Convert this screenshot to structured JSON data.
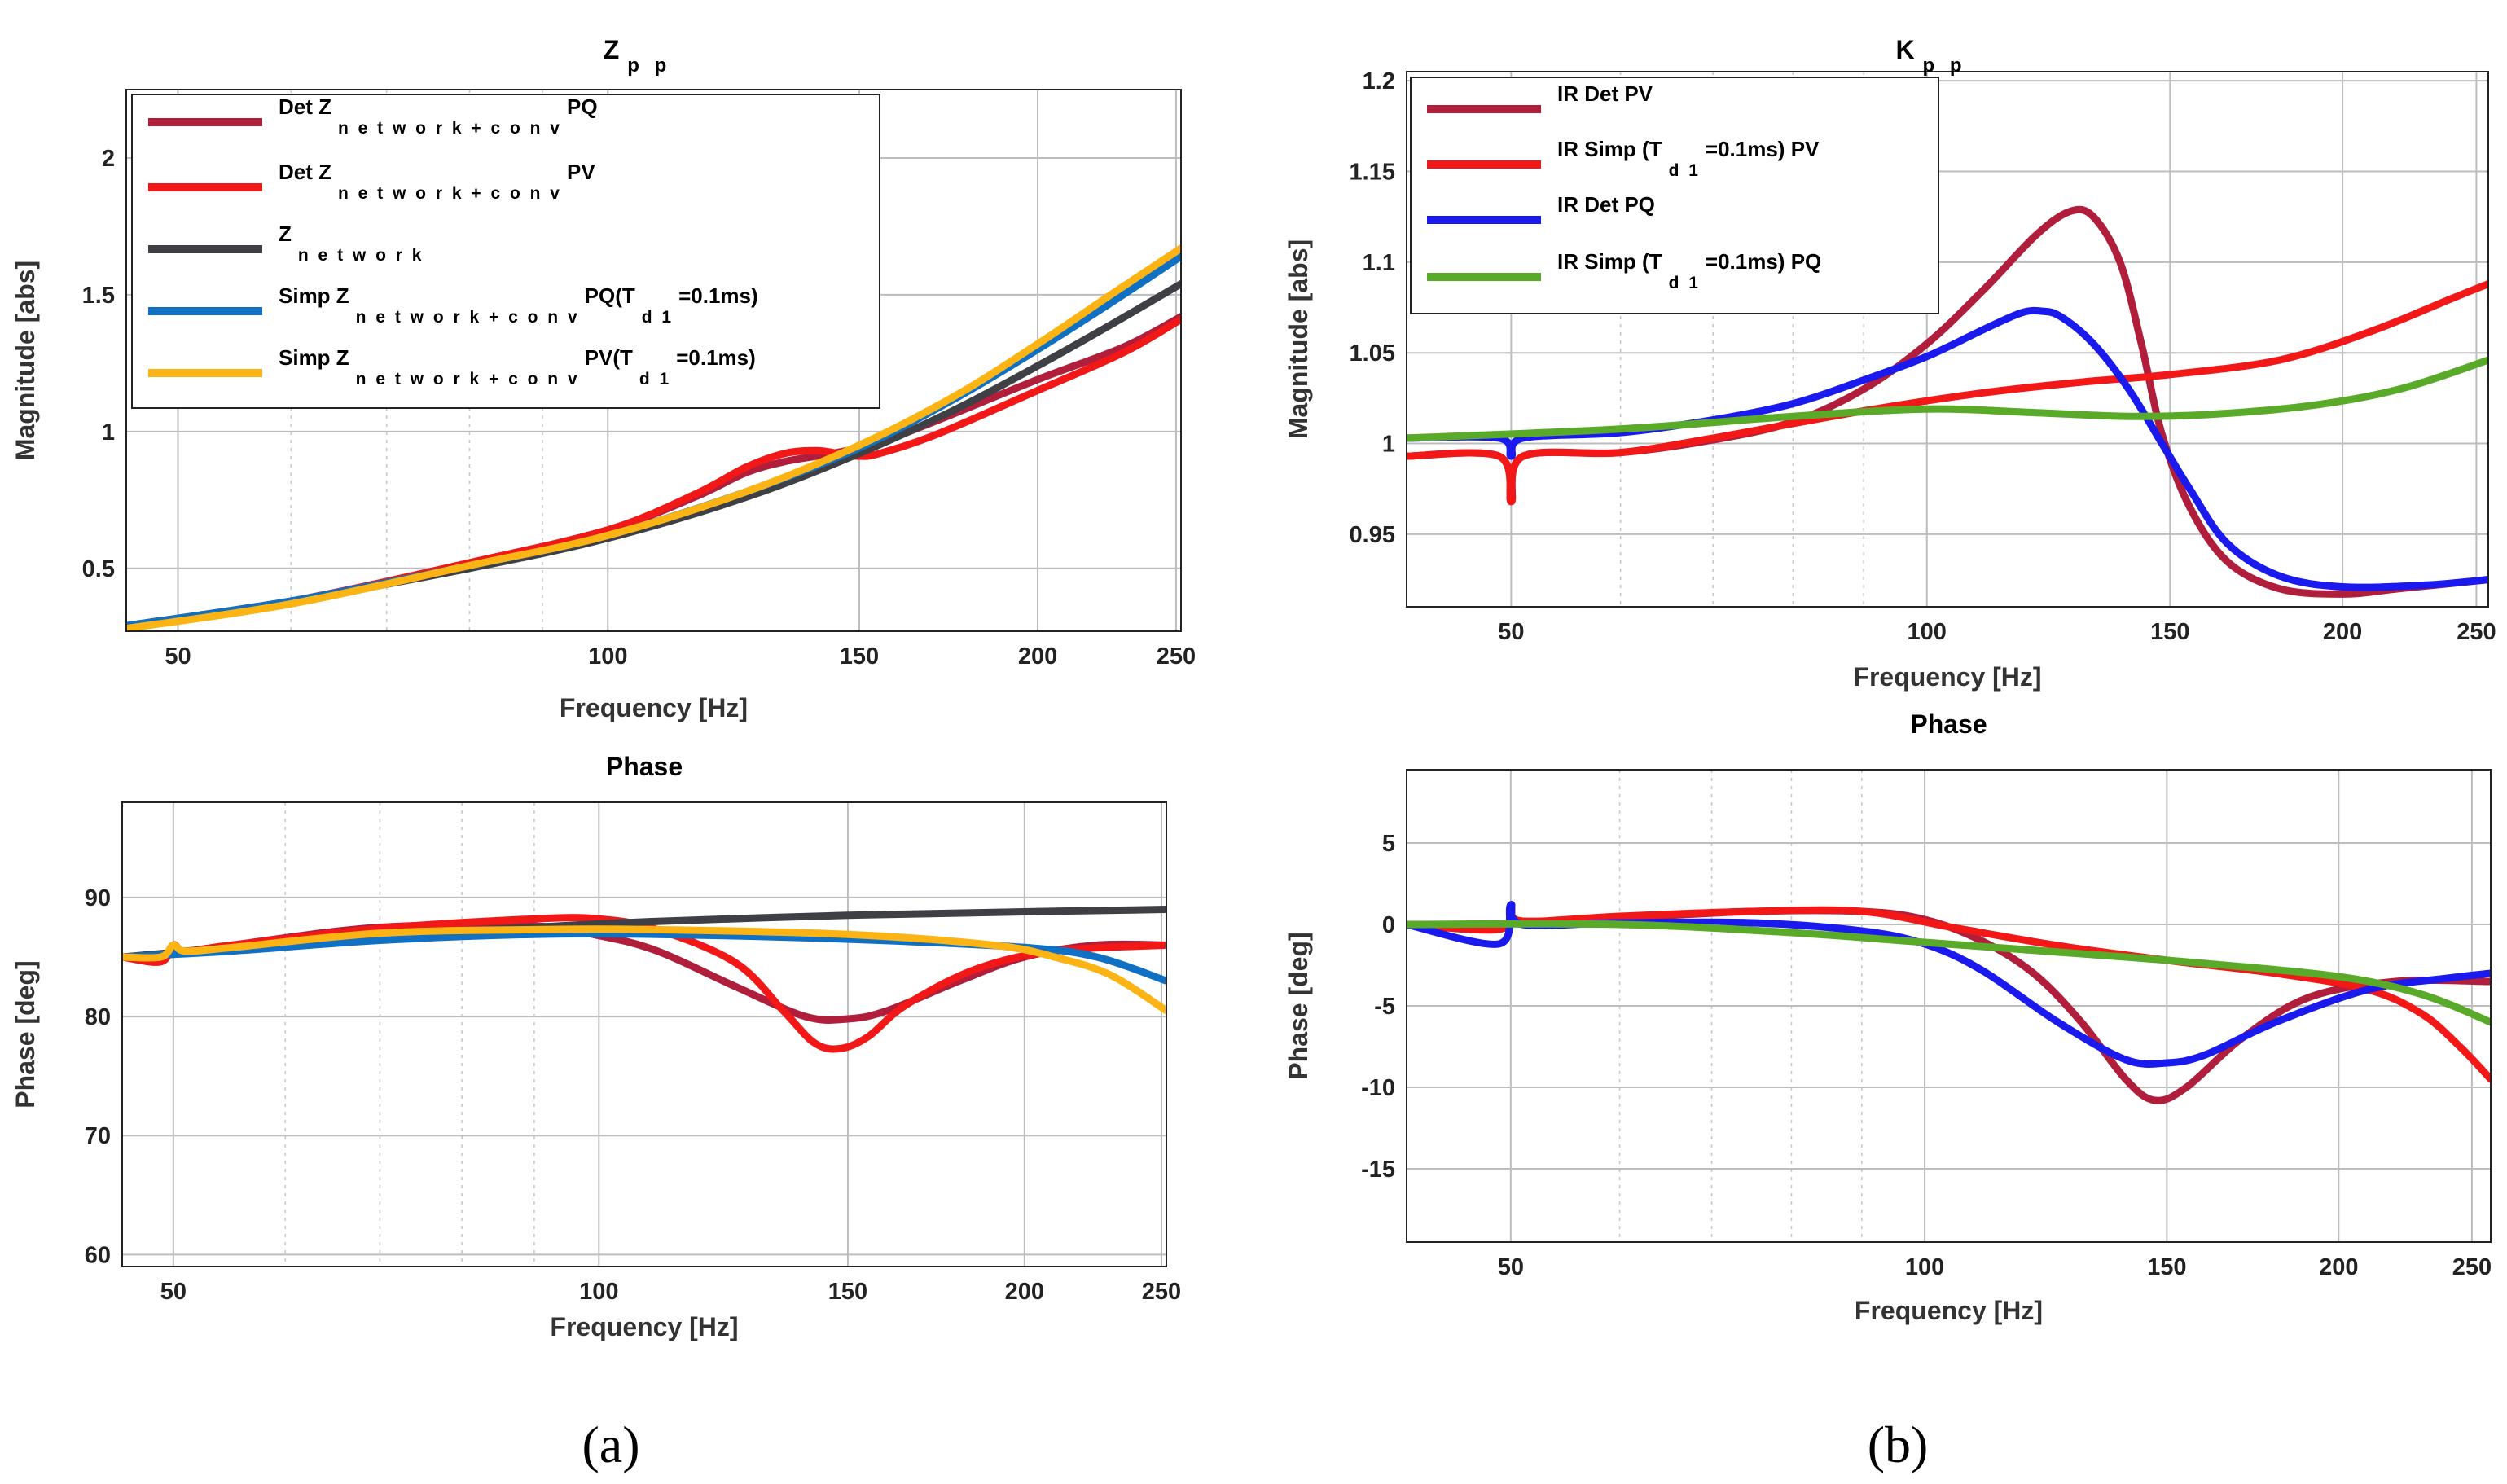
{
  "colors": {
    "darkred": "#b01e3c",
    "red": "#f21818",
    "gray": "#3f4045",
    "blue": "#1070c4",
    "yellow": "#fbb413",
    "brightblue": "#1a1aee",
    "green": "#5aaa2a"
  },
  "panels": [
    {
      "label": "(a)"
    },
    {
      "label": "(b)"
    }
  ],
  "chart_data": [
    {
      "id": "a_mag",
      "type": "line",
      "title": "Z",
      "title_sub": "p p",
      "xlabel": "Frequency [Hz]",
      "ylabel": "Magnitude [abs]",
      "xscale": "log",
      "xlim": [
        46,
        252
      ],
      "ylim": [
        0.27,
        2.25
      ],
      "xticks": [
        50,
        100,
        150,
        200,
        250
      ],
      "yticks": [
        0.5,
        1,
        1.5,
        2
      ],
      "grid": true,
      "legend_position": "top-left",
      "series": [
        {
          "name": "Det Z",
          "name_sub": "n e t w o r k + c o n v",
          "name_tail": "PQ",
          "color": "#b01e3c",
          "x": [
            46,
            60,
            80,
            100,
            115,
            125,
            133,
            140,
            147,
            155,
            170,
            200,
            230,
            252
          ],
          "y": [
            0.29,
            0.38,
            0.52,
            0.64,
            0.76,
            0.85,
            0.89,
            0.91,
            0.93,
            0.96,
            1.04,
            1.19,
            1.31,
            1.42
          ]
        },
        {
          "name": "Det Z",
          "name_sub": "n e t w o r k + c o n v",
          "name_tail": "PV",
          "color": "#f21818",
          "x": [
            46,
            60,
            80,
            100,
            115,
            125,
            133,
            140,
            145,
            150,
            155,
            170,
            200,
            230,
            252
          ],
          "y": [
            0.29,
            0.38,
            0.52,
            0.64,
            0.77,
            0.87,
            0.92,
            0.93,
            0.92,
            0.91,
            0.92,
            0.99,
            1.15,
            1.29,
            1.41
          ]
        },
        {
          "name": "Z",
          "name_sub": "n e t w o r k",
          "name_tail": "",
          "color": "#3f4045",
          "x": [
            46,
            60,
            80,
            100,
            125,
            150,
            175,
            200,
            225,
            252
          ],
          "y": [
            0.29,
            0.38,
            0.5,
            0.61,
            0.76,
            0.92,
            1.08,
            1.24,
            1.39,
            1.54
          ]
        },
        {
          "name": "Simp Z",
          "name_sub": "n e t w o r k + c o n v",
          "name_tail": "PQ(T",
          "name_sub2": "d 1",
          "name_tail2": "=0.1ms)",
          "color": "#1070c4",
          "x": [
            46,
            60,
            80,
            100,
            125,
            150,
            175,
            200,
            225,
            252
          ],
          "y": [
            0.29,
            0.38,
            0.51,
            0.62,
            0.78,
            0.94,
            1.12,
            1.3,
            1.47,
            1.64
          ]
        },
        {
          "name": "Simp Z",
          "name_sub": "n e t w o r k + c o n v",
          "name_tail": "PV(T",
          "name_sub2": "d 1",
          "name_tail2": "=0.1ms)",
          "color": "#fbb413",
          "x": [
            46,
            60,
            80,
            100,
            125,
            150,
            175,
            200,
            225,
            252
          ],
          "y": [
            0.28,
            0.37,
            0.51,
            0.62,
            0.78,
            0.95,
            1.13,
            1.32,
            1.5,
            1.67
          ]
        }
      ]
    },
    {
      "id": "a_phase",
      "type": "line",
      "title": "Phase",
      "xlabel": "Frequency [Hz]",
      "ylabel": "Phase [deg]",
      "xscale": "log",
      "xlim": [
        46,
        252
      ],
      "ylim": [
        59,
        98
      ],
      "xticks": [
        50,
        100,
        150,
        200,
        250
      ],
      "yticks": [
        60,
        70,
        80,
        90
      ],
      "grid": true,
      "series": [
        {
          "name": "Det Z network+conv PQ",
          "color": "#b01e3c",
          "x": [
            46,
            49,
            50,
            51,
            55,
            70,
            90,
            100,
            110,
            125,
            140,
            150,
            160,
            180,
            200,
            225,
            252
          ],
          "y": [
            85,
            84.6,
            86,
            85.5,
            86,
            87.5,
            87.6,
            86.8,
            85.5,
            82.5,
            80,
            79.8,
            80.5,
            83,
            85,
            86,
            86
          ]
        },
        {
          "name": "Det Z network+conv PV",
          "color": "#f21818",
          "x": [
            46,
            49,
            50,
            51,
            55,
            70,
            90,
            100,
            110,
            125,
            135,
            142,
            148,
            155,
            165,
            185,
            210,
            252
          ],
          "y": [
            85,
            84.6,
            86,
            85.5,
            86,
            87.4,
            88.2,
            88.2,
            87.3,
            84.5,
            80.5,
            77.8,
            77.3,
            78.3,
            81,
            84,
            85.5,
            86
          ]
        },
        {
          "name": "Z network",
          "color": "#3f4045",
          "x": [
            46,
            55,
            70,
            90,
            110,
            150,
            200,
            252
          ],
          "y": [
            85,
            85.8,
            86.8,
            87.5,
            88,
            88.5,
            88.8,
            89
          ]
        },
        {
          "name": "Simp Z network+conv PQ",
          "color": "#1070c4",
          "x": [
            46,
            55,
            70,
            90,
            110,
            150,
            200,
            225,
            252
          ],
          "y": [
            85,
            85.5,
            86.4,
            86.9,
            86.9,
            86.5,
            85.8,
            85,
            83
          ]
        },
        {
          "name": "Simp Z network+conv PV",
          "color": "#fbb413",
          "x": [
            46,
            49,
            50,
            51,
            55,
            70,
            90,
            110,
            150,
            190,
            210,
            230,
            252
          ],
          "y": [
            85,
            85,
            86,
            85.5,
            85.8,
            87,
            87.3,
            87.3,
            86.9,
            86,
            85,
            83.5,
            80.5
          ]
        }
      ]
    },
    {
      "id": "b_mag",
      "type": "line",
      "title": "K",
      "title_sub": "p p",
      "xlabel": "Frequency [Hz]",
      "ylabel": "Magnitude [abs]",
      "xscale": "log",
      "xlim": [
        42,
        255
      ],
      "ylim": [
        0.91,
        1.205
      ],
      "xticks": [
        50,
        100,
        150,
        200,
        250
      ],
      "yticks": [
        0.95,
        1,
        1.05,
        1.1,
        1.15,
        1.2
      ],
      "grid": true,
      "legend_position": "top-left",
      "series": [
        {
          "name": "IR Det PV",
          "color": "#b01e3c",
          "x": [
            42,
            49,
            50,
            51,
            60,
            70,
            80,
            90,
            100,
            110,
            120,
            127,
            132,
            138,
            143,
            148,
            155,
            165,
            180,
            200,
            220,
            255
          ],
          "y": [
            0.993,
            0.993,
            0.968,
            0.993,
            0.995,
            1.002,
            1.012,
            1.03,
            1.055,
            1.085,
            1.115,
            1.128,
            1.125,
            1.1,
            1.055,
            1.005,
            0.965,
            0.935,
            0.92,
            0.917,
            0.92,
            0.925
          ]
        },
        {
          "name": "IR Simp (T",
          "name_sub": "d 1",
          "name_tail": "=0.1ms) PV",
          "color": "#f21818",
          "x": [
            42,
            49,
            50,
            51,
            60,
            70,
            90,
            110,
            130,
            150,
            180,
            210,
            240,
            255
          ],
          "y": [
            0.993,
            0.993,
            0.968,
            0.993,
            0.995,
            1.003,
            1.018,
            1.028,
            1.034,
            1.038,
            1.046,
            1.062,
            1.08,
            1.088
          ]
        },
        {
          "name": "IR Det PQ",
          "color": "#1a1aee",
          "x": [
            42,
            49,
            50,
            51,
            60,
            70,
            80,
            90,
            100,
            110,
            117,
            121,
            125,
            132,
            140,
            148,
            155,
            165,
            180,
            200,
            230,
            255
          ],
          "y": [
            1.003,
            1.003,
            0.993,
            1.003,
            1.006,
            1.013,
            1.022,
            1.035,
            1.048,
            1.063,
            1.072,
            1.073,
            1.07,
            1.055,
            1.03,
            1.0,
            0.975,
            0.945,
            0.927,
            0.921,
            0.922,
            0.925
          ]
        },
        {
          "name": "IR Simp (T",
          "name_sub": "d 1",
          "name_tail": "=0.1ms) PQ",
          "color": "#5aaa2a",
          "x": [
            42,
            60,
            80,
            100,
            120,
            140,
            160,
            190,
            220,
            255
          ],
          "y": [
            1.003,
            1.008,
            1.015,
            1.019,
            1.017,
            1.015,
            1.016,
            1.021,
            1.03,
            1.046
          ]
        }
      ]
    },
    {
      "id": "b_phase",
      "type": "line",
      "title": "Phase",
      "xlabel": "Frequency [Hz]",
      "ylabel": "Phase [deg]",
      "xscale": "log",
      "xlim": [
        42,
        258
      ],
      "ylim": [
        -19.5,
        9.5
      ],
      "xticks": [
        50,
        100,
        150,
        200,
        250
      ],
      "yticks": [
        -15,
        -10,
        -5,
        0,
        5
      ],
      "grid": true,
      "series": [
        {
          "name": "IR Det PV",
          "color": "#b01e3c",
          "x": [
            42,
            49,
            50,
            51,
            60,
            75,
            90,
            100,
            110,
            120,
            130,
            140,
            147,
            155,
            170,
            190,
            220,
            258
          ],
          "y": [
            0,
            -0.3,
            0.8,
            0.2,
            0.4,
            0.8,
            0.8,
            0.3,
            -1,
            -3,
            -6,
            -9.5,
            -10.8,
            -10,
            -7,
            -4.5,
            -3.5,
            -3.5
          ]
        },
        {
          "name": "IR Simp (T d1=0.1ms) PV",
          "color": "#f21818",
          "x": [
            42,
            49,
            50,
            51,
            60,
            75,
            90,
            105,
            125,
            150,
            180,
            210,
            230,
            245,
            258
          ],
          "y": [
            0,
            -0.3,
            1,
            0.2,
            0.5,
            0.8,
            0.8,
            -0.2,
            -1.3,
            -2.2,
            -3,
            -4,
            -5.5,
            -7.5,
            -9.5
          ]
        },
        {
          "name": "IR Det PQ",
          "color": "#1a1aee",
          "x": [
            42,
            49,
            50,
            51,
            60,
            75,
            90,
            100,
            110,
            125,
            140,
            150,
            160,
            180,
            210,
            240,
            258
          ],
          "y": [
            0,
            -1.2,
            1.2,
            0,
            0.1,
            0.1,
            -0.4,
            -1.2,
            -2.8,
            -6,
            -8.3,
            -8.5,
            -8,
            -6,
            -4,
            -3.3,
            -3
          ]
        },
        {
          "name": "IR Simp (T d1=0.1ms) PQ",
          "color": "#5aaa2a",
          "x": [
            42,
            60,
            80,
            100,
            130,
            160,
            200,
            230,
            258
          ],
          "y": [
            0,
            0,
            -0.5,
            -1.1,
            -1.8,
            -2.4,
            -3.2,
            -4.3,
            -6
          ]
        }
      ]
    }
  ]
}
